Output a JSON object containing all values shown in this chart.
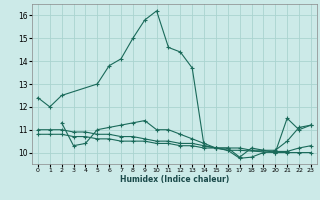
{
  "xlabel": "Humidex (Indice chaleur)",
  "xlim": [
    -0.5,
    23.5
  ],
  "ylim": [
    9.5,
    16.5
  ],
  "xticks": [
    0,
    1,
    2,
    3,
    4,
    5,
    6,
    7,
    8,
    9,
    10,
    11,
    12,
    13,
    14,
    15,
    16,
    17,
    18,
    19,
    20,
    21,
    22,
    23
  ],
  "yticks": [
    10,
    11,
    12,
    13,
    14,
    15,
    16
  ],
  "bg_color": "#cceae8",
  "grid_color": "#aad4d0",
  "line_color": "#1a6a5a",
  "lines": [
    {
      "x": [
        0,
        1,
        2,
        5,
        6,
        7,
        8,
        9,
        10,
        11,
        12,
        13,
        14,
        15,
        16,
        17,
        20,
        21,
        22,
        23
      ],
      "y": [
        12.4,
        12.0,
        12.5,
        13.0,
        13.8,
        14.1,
        15.0,
        15.8,
        16.2,
        14.6,
        14.4,
        13.7,
        10.3,
        10.2,
        10.1,
        10.1,
        10.0,
        11.5,
        11.0,
        11.2
      ]
    },
    {
      "x": [
        2,
        3,
        4,
        5,
        6,
        7,
        8,
        9,
        10,
        11,
        12,
        13,
        14,
        15,
        16,
        17,
        18,
        19,
        20,
        21,
        22,
        23
      ],
      "y": [
        11.3,
        10.3,
        10.4,
        11.0,
        11.1,
        11.2,
        11.3,
        11.4,
        11.0,
        11.0,
        10.8,
        10.6,
        10.4,
        10.2,
        10.2,
        9.8,
        10.2,
        10.1,
        10.1,
        10.5,
        11.1,
        11.2
      ]
    },
    {
      "x": [
        0,
        1,
        2,
        3,
        4,
        5,
        6,
        7,
        8,
        9,
        10,
        11,
        12,
        13,
        14,
        15,
        16,
        17,
        18,
        19,
        20,
        21,
        22,
        23
      ],
      "y": [
        11.0,
        11.0,
        11.0,
        10.9,
        10.9,
        10.8,
        10.8,
        10.7,
        10.7,
        10.6,
        10.5,
        10.5,
        10.4,
        10.4,
        10.3,
        10.2,
        10.2,
        10.2,
        10.1,
        10.1,
        10.0,
        10.0,
        10.0,
        10.0
      ]
    },
    {
      "x": [
        0,
        1,
        2,
        3,
        4,
        5,
        6,
        7,
        8,
        9,
        10,
        11,
        12,
        13,
        14,
        15,
        16,
        17,
        18,
        19,
        20,
        21,
        22,
        23
      ],
      "y": [
        10.8,
        10.8,
        10.8,
        10.7,
        10.7,
        10.6,
        10.6,
        10.5,
        10.5,
        10.5,
        10.4,
        10.4,
        10.3,
        10.3,
        10.2,
        10.2,
        10.1,
        9.75,
        9.8,
        10.0,
        10.05,
        10.05,
        10.2,
        10.3
      ]
    }
  ]
}
